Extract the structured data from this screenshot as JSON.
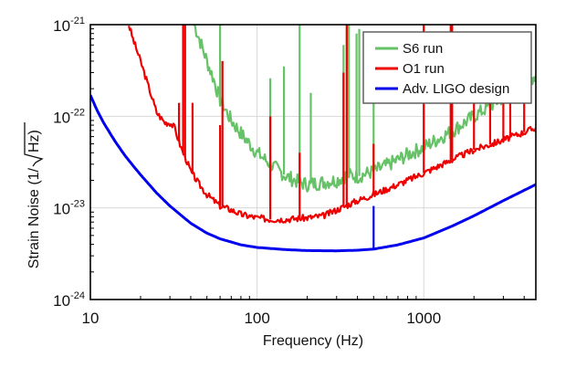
{
  "chart_data": {
    "type": "line",
    "title": "",
    "xlabel": "Frequency (Hz)",
    "ylabel_prefix": "Strain Noise (1/",
    "ylabel_radicand": "Hz",
    "ylabel_suffix": ")",
    "xscale": "log",
    "yscale": "log",
    "xlim": [
      10,
      4700
    ],
    "ylim": [
      1e-24,
      1e-21
    ],
    "grid": true,
    "x_tick_labels": [
      {
        "value": 10,
        "label": "10"
      },
      {
        "value": 100,
        "label": "100"
      },
      {
        "value": 1000,
        "label": "1000"
      }
    ],
    "y_tick_labels": [
      {
        "value": 1e-21,
        "base": "10",
        "exp": "-21"
      },
      {
        "value": 1e-22,
        "base": "10",
        "exp": "-22"
      },
      {
        "value": 1e-23,
        "base": "10",
        "exp": "-23"
      },
      {
        "value": 1e-24,
        "base": "10",
        "exp": "-24"
      }
    ],
    "legend": {
      "placement": "top-right",
      "entries": [
        {
          "label": "S6 run",
          "color": "#66c266"
        },
        {
          "label": "O1 run",
          "color": "#ee0000"
        },
        {
          "label": "Adv. LIGO design",
          "color": "#0000ee"
        }
      ]
    },
    "series": [
      {
        "name": "S6 run",
        "color": "#66c266",
        "x": [
          42,
          45,
          50,
          55,
          60,
          70,
          80,
          90,
          100,
          120,
          150,
          180,
          200,
          250,
          300,
          350,
          400,
          500,
          600,
          800,
          1000,
          1500,
          2000,
          3000,
          4700
        ],
        "y": [
          1e-21,
          7e-22,
          4e-22,
          2.5e-22,
          1.5e-22,
          9e-23,
          6.5e-23,
          5e-23,
          4e-23,
          3e-23,
          2.2e-23,
          1.9e-23,
          1.8e-23,
          1.9e-23,
          2e-23,
          2.3e-23,
          2.2e-23,
          2.5e-23,
          2.9e-23,
          3.8e-23,
          4.6e-23,
          7e-23,
          1e-22,
          1.6e-22,
          2.8e-22
        ],
        "lines": [
          {
            "x": 60,
            "peak": 1e-21
          },
          {
            "x": 180,
            "peak": 1e-21
          },
          {
            "x": 120,
            "peak": 2.6e-22
          },
          {
            "x": 145,
            "peak": 3.5e-22
          },
          {
            "x": 210,
            "peak": 1.8e-22
          },
          {
            "x": 330,
            "peak": 6e-22
          },
          {
            "x": 345,
            "peak": 1e-21
          },
          {
            "x": 355,
            "peak": 1e-21
          },
          {
            "x": 395,
            "peak": 8e-22
          },
          {
            "x": 410,
            "peak": 9e-22
          },
          {
            "x": 500,
            "peak": 8e-22
          },
          {
            "x": 1000,
            "peak": 1e-21
          }
        ]
      },
      {
        "name": "O1 run",
        "color": "#ee0000",
        "x": [
          17,
          18,
          20,
          22,
          25,
          28,
          30,
          32,
          35,
          38,
          40,
          45,
          50,
          60,
          70,
          80,
          100,
          120,
          150,
          200,
          250,
          300,
          400,
          500,
          700,
          1000,
          1500,
          2000,
          3000,
          4700
        ],
        "y": [
          1e-21,
          7e-22,
          4e-22,
          2.3e-22,
          1.1e-22,
          8.5e-23,
          8.5e-23,
          7.5e-23,
          4.5e-23,
          3.2e-23,
          2.5e-23,
          1.8e-23,
          1.4e-23,
          1.05e-23,
          9.5e-24,
          8.5e-24,
          7.8e-24,
          7.5e-24,
          7.5e-24,
          7.8e-24,
          8.2e-24,
          9.5e-24,
          1.2e-23,
          1.4e-23,
          1.8e-23,
          2.4e-23,
          3.4e-23,
          4.3e-23,
          5.5e-23,
          7.5e-23
        ],
        "lines": [
          {
            "x": 34,
            "peak": 1.4e-22
          },
          {
            "x": 36,
            "peak": 1e-21
          },
          {
            "x": 37,
            "peak": 1e-21
          },
          {
            "x": 41,
            "peak": 1.4e-22
          },
          {
            "x": 60,
            "peak": 8e-23
          },
          {
            "x": 62,
            "peak": 4e-22
          },
          {
            "x": 120,
            "peak": 1e-22
          },
          {
            "x": 180,
            "peak": 4e-23
          },
          {
            "x": 330,
            "peak": 3e-22
          },
          {
            "x": 345,
            "peak": 1e-21
          },
          {
            "x": 500,
            "peak": 5e-23
          },
          {
            "x": 1000,
            "peak": 1e-21
          },
          {
            "x": 1450,
            "peak": 1e-21
          },
          {
            "x": 1480,
            "peak": 1e-21
          },
          {
            "x": 2000,
            "peak": 6e-22
          },
          {
            "x": 2500,
            "peak": 2e-22
          },
          {
            "x": 3000,
            "peak": 1.5e-22
          },
          {
            "x": 3300,
            "peak": 2e-22
          },
          {
            "x": 4000,
            "peak": 1.5e-22
          }
        ]
      },
      {
        "name": "Adv. LIGO design",
        "color": "#0000ee",
        "x": [
          10,
          11,
          12,
          14,
          16,
          18,
          20,
          25,
          30,
          40,
          50,
          60,
          80,
          100,
          150,
          200,
          300,
          400,
          500,
          700,
          1000,
          1500,
          2000,
          3000,
          4700
        ],
        "y": [
          1.7e-22,
          1.15e-22,
          8.5e-23,
          5.4e-23,
          3.8e-23,
          2.9e-23,
          2.3e-23,
          1.45e-23,
          1.05e-23,
          6.8e-24,
          5.3e-24,
          4.6e-24,
          3.95e-24,
          3.7e-24,
          3.5e-24,
          3.42e-24,
          3.4e-24,
          3.45e-24,
          3.55e-24,
          3.95e-24,
          4.7e-24,
          6.4e-24,
          8.2e-24,
          1.2e-23,
          1.8e-23
        ],
        "lines": [
          {
            "x": 500,
            "peak": 1.05e-23
          }
        ]
      }
    ]
  }
}
